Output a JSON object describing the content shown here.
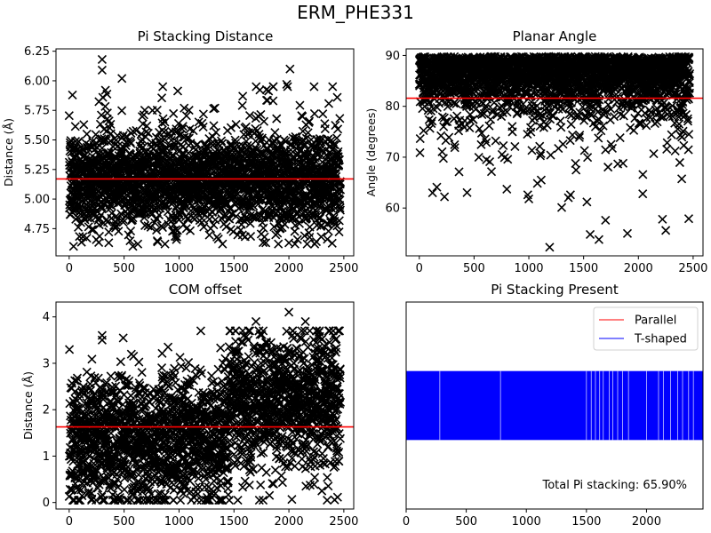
{
  "figure": {
    "suptitle": "ERM_PHE331"
  },
  "chart_data": [
    {
      "id": "p1",
      "type": "scatter",
      "title": "Pi Stacking Distance",
      "xlabel": "",
      "ylabel": "Distance (Å)",
      "xlim": [
        -120,
        2590
      ],
      "ylim": [
        4.52,
        6.27
      ],
      "xticks": [
        0,
        500,
        1000,
        1500,
        2000,
        2500
      ],
      "xtick_labels": [
        "0",
        "500",
        "1000",
        "1500",
        "2000",
        "2500"
      ],
      "yticks": [
        4.75,
        5.0,
        5.25,
        5.5,
        5.75,
        6.0,
        6.25
      ],
      "ytick_labels": [
        "4.75",
        "5.00",
        "5.25",
        "5.50",
        "5.75",
        "6.00",
        "6.25"
      ],
      "marker": "x",
      "marker_color": "#000000",
      "n_frames": 2470,
      "band_center": 5.15,
      "band_spread": 0.2,
      "outlier_points": [
        {
          "x": 300,
          "y": 6.18
        },
        {
          "x": 300,
          "y": 6.09
        },
        {
          "x": 480,
          "y": 6.02
        },
        {
          "x": 330,
          "y": 5.92
        },
        {
          "x": 2010,
          "y": 6.1
        },
        {
          "x": 1980,
          "y": 5.97
        },
        {
          "x": 30,
          "y": 5.88
        },
        {
          "x": 1580,
          "y": 5.87
        },
        {
          "x": 2440,
          "y": 5.86
        },
        {
          "x": 40,
          "y": 4.6
        },
        {
          "x": 160,
          "y": 4.67
        },
        {
          "x": 360,
          "y": 4.63
        },
        {
          "x": 580,
          "y": 4.6
        },
        {
          "x": 1790,
          "y": 4.63
        },
        {
          "x": 2000,
          "y": 4.63
        },
        {
          "x": 2250,
          "y": 4.64
        },
        {
          "x": 2350,
          "y": 4.66
        },
        {
          "x": 980,
          "y": 4.68
        }
      ],
      "hline": {
        "y": 5.17,
        "color": "#ff0000"
      }
    },
    {
      "id": "p2",
      "type": "scatter",
      "title": "Planar Angle",
      "xlabel": "",
      "ylabel": "Angle (degrees)",
      "xlim": [
        -120,
        2590
      ],
      "ylim": [
        50.6,
        91.3
      ],
      "xticks": [
        0,
        500,
        1000,
        1500,
        2000,
        2500
      ],
      "xtick_labels": [
        "0",
        "500",
        "1000",
        "1500",
        "2000",
        "2500"
      ],
      "yticks": [
        60,
        70,
        80,
        90
      ],
      "ytick_labels": [
        "60",
        "70",
        "80",
        "90"
      ],
      "marker": "x",
      "marker_color": "#000000",
      "n_frames": 2470,
      "band_center": 84.5,
      "band_spread": 4.5,
      "outlier_points": [
        {
          "x": 1190,
          "y": 52.3
        },
        {
          "x": 1560,
          "y": 54.8
        },
        {
          "x": 1640,
          "y": 53.8
        },
        {
          "x": 1900,
          "y": 55.0
        },
        {
          "x": 2250,
          "y": 55.6
        },
        {
          "x": 2460,
          "y": 57.9
        },
        {
          "x": 2220,
          "y": 57.8
        },
        {
          "x": 1300,
          "y": 60.1
        },
        {
          "x": 1000,
          "y": 61.8
        },
        {
          "x": 230,
          "y": 62.2
        },
        {
          "x": 1700,
          "y": 57.6
        },
        {
          "x": 1380,
          "y": 62.6
        },
        {
          "x": 160,
          "y": 64.1
        },
        {
          "x": 2040,
          "y": 62.8
        },
        {
          "x": 1530,
          "y": 61.2
        }
      ],
      "hline": {
        "y": 81.6,
        "color": "#ff0000"
      }
    },
    {
      "id": "p3",
      "type": "scatter",
      "title": "COM offset",
      "xlabel": "",
      "ylabel": "Distance (Å)",
      "xlim": [
        -120,
        2590
      ],
      "ylim": [
        -0.14,
        4.32
      ],
      "xticks": [
        0,
        500,
        1000,
        1500,
        2000,
        2500
      ],
      "xtick_labels": [
        "0",
        "500",
        "1000",
        "1500",
        "2000",
        "2500"
      ],
      "yticks": [
        0,
        1,
        2,
        3,
        4
      ],
      "ytick_labels": [
        "0",
        "1",
        "2",
        "3",
        "4"
      ],
      "marker": "x",
      "marker_color": "#000000",
      "n_frames": 2470,
      "segments": [
        {
          "x0": 0,
          "x1": 1450,
          "center": 1.4,
          "spread": 0.7
        },
        {
          "x0": 1450,
          "x1": 2470,
          "center": 2.2,
          "spread": 0.75
        }
      ],
      "outlier_points": [
        {
          "x": 2000,
          "y": 4.1
        },
        {
          "x": 1700,
          "y": 3.9
        },
        {
          "x": 2150,
          "y": 3.9
        },
        {
          "x": 300,
          "y": 3.6
        },
        {
          "x": 300,
          "y": 3.5
        },
        {
          "x": 900,
          "y": 3.35
        },
        {
          "x": 2370,
          "y": 3.45
        },
        {
          "x": 100,
          "y": 0.05
        },
        {
          "x": 1300,
          "y": 0.1
        },
        {
          "x": 2300,
          "y": 0.25
        }
      ],
      "hline": {
        "y": 1.63,
        "color": "#ff0000"
      }
    },
    {
      "id": "p4",
      "type": "bar",
      "title": "Pi Stacking Present",
      "xlabel": "",
      "ylabel": "",
      "xlim": [
        0,
        2470
      ],
      "ylim": [
        0,
        1.5
      ],
      "xticks": [
        0,
        500,
        1000,
        1500,
        2000
      ],
      "xtick_labels": [
        "0",
        "500",
        "1000",
        "1500",
        "2000"
      ],
      "bar_y": [
        0.5,
        1.0
      ],
      "gaps": [
        280,
        785,
        1500,
        1540,
        1575,
        1610,
        1640,
        1690,
        1720,
        1760,
        1800,
        1850,
        2000,
        2100,
        2140,
        2200,
        2260,
        2300,
        2350,
        2390
      ],
      "legend": [
        {
          "label": "Parallel",
          "color": "#ff0000"
        },
        {
          "label": "T-shaped",
          "color": "#0000ff"
        }
      ],
      "legend_position": "top-right",
      "annotation": "Total Pi stacking: 65.90%"
    }
  ]
}
